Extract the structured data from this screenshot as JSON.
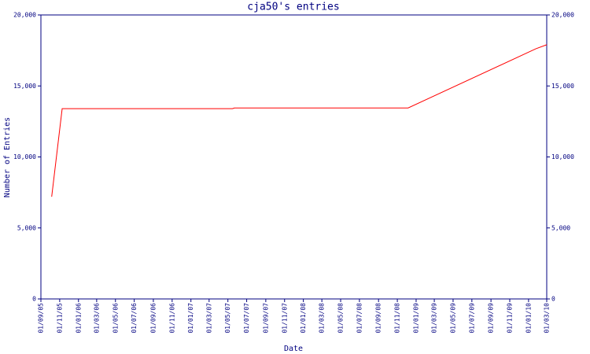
{
  "chart_data": {
    "type": "line",
    "title": "cja50's entries",
    "x_label": "Date",
    "y_label": "Number of Entries",
    "x": [
      "06/10/05",
      "09/11/05",
      "16/05/07",
      "22/05/07",
      "06/12/08",
      "25/01/10",
      "01/03/10"
    ],
    "values": [
      7200,
      13400,
      13400,
      13450,
      13450,
      17620,
      17900
    ],
    "color": "#ff0000",
    "axis_color": "#000080",
    "xlim": [
      "01/09/05",
      "01/03/10"
    ],
    "xticks": [
      "01/09/05",
      "01/11/05",
      "01/01/06",
      "01/03/06",
      "01/05/06",
      "01/07/06",
      "01/09/06",
      "01/11/06",
      "01/01/07",
      "01/03/07",
      "01/05/07",
      "01/07/07",
      "01/09/07",
      "01/11/07",
      "01/01/08",
      "01/03/08",
      "01/05/08",
      "01/07/08",
      "01/09/08",
      "01/11/08",
      "01/01/09",
      "01/03/09",
      "01/05/09",
      "01/07/09",
      "01/09/09",
      "01/11/09",
      "01/01/10",
      "01/03/10"
    ],
    "ylim": [
      0,
      20000
    ],
    "yticks": [
      0,
      {
        "value": 5000,
        "label": "5,000"
      },
      {
        "value": 10000,
        "label": "10,000"
      },
      {
        "value": 15000,
        "label": "15,000"
      },
      {
        "value": 20000,
        "label": "20,000"
      }
    ],
    "y2lim": [
      0,
      20000
    ],
    "y2ticks": [
      0,
      {
        "value": 5000,
        "label": "5,000"
      },
      {
        "value": 10000,
        "label": "10,000"
      },
      {
        "value": 15000,
        "label": "15,000"
      },
      {
        "value": 20000,
        "label": "20,000"
      }
    ],
    "grid": false
  }
}
